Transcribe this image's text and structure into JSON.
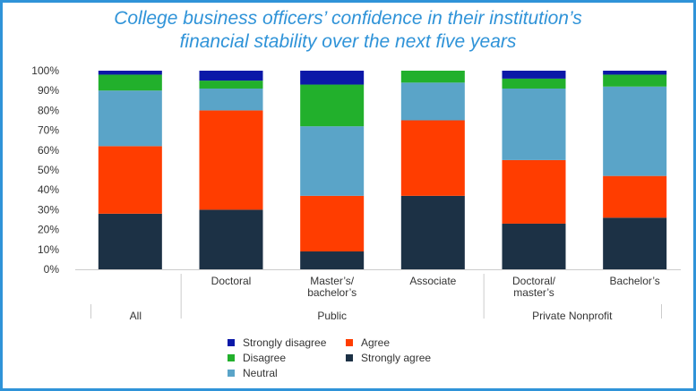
{
  "title_line1": "College business officers’ confidence in their institution’s",
  "title_line2": "financial stability over the next five years",
  "colors": {
    "strongly_disagree": "#0b18a8",
    "disagree": "#22b02c",
    "neutral": "#5aa4c8",
    "agree": "#ff3d00",
    "strongly_agree": "#1c3145",
    "frame": "#2f93d8"
  },
  "legend": [
    {
      "key": "strongly_disagree",
      "label": "Strongly disagree"
    },
    {
      "key": "agree",
      "label": "Agree"
    },
    {
      "key": "disagree",
      "label": "Disagree"
    },
    {
      "key": "strongly_agree",
      "label": "Strongly agree"
    },
    {
      "key": "neutral",
      "label": "Neutral"
    }
  ],
  "chart_data": {
    "type": "bar",
    "stacked": true,
    "title": "College business officers’ confidence in their institution’s financial stability over the next five years",
    "ylim": [
      0,
      100
    ],
    "y_ticks": [
      "0%",
      "10%",
      "20%",
      "30%",
      "40%",
      "50%",
      "60%",
      "70%",
      "80%",
      "90%",
      "100%"
    ],
    "categories": [
      "",
      "Doctoral",
      "Master’s/\nbachelor’s",
      "Associate",
      "Doctoral/\nmaster’s",
      "Bachelor’s"
    ],
    "groups": [
      {
        "label": "All",
        "from": 0,
        "to": 0
      },
      {
        "label": "Public",
        "from": 1,
        "to": 3
      },
      {
        "label": "Private Nonprofit",
        "from": 4,
        "to": 5
      }
    ],
    "series": [
      {
        "name": "Strongly agree",
        "key": "strongly_agree",
        "values": [
          28,
          30,
          9,
          37,
          23,
          26
        ]
      },
      {
        "name": "Agree",
        "key": "agree",
        "values": [
          34,
          50,
          28,
          38,
          32,
          21
        ]
      },
      {
        "name": "Neutral",
        "key": "neutral",
        "values": [
          28,
          11,
          35,
          19,
          36,
          45
        ]
      },
      {
        "name": "Disagree",
        "key": "disagree",
        "values": [
          8,
          4,
          21,
          6,
          5,
          6
        ]
      },
      {
        "name": "Strongly disagree",
        "key": "strongly_disagree",
        "values": [
          2,
          5,
          7,
          0,
          4,
          2
        ]
      }
    ],
    "grid": false,
    "legend_position": "bottom"
  }
}
